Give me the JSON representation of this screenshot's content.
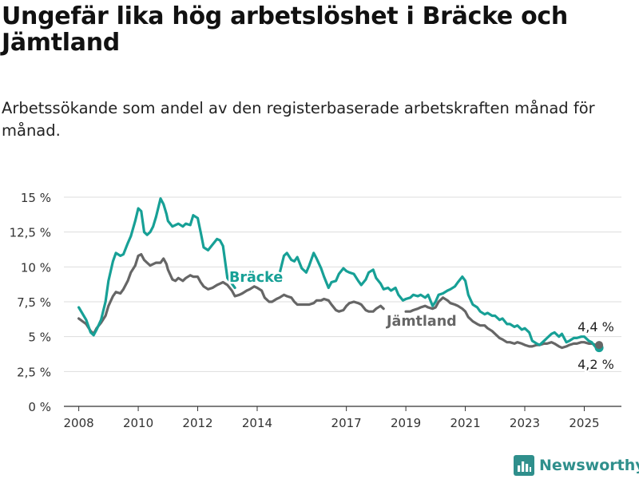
{
  "title": "Ungefär lika hög arbetslöshet i Bräcke och Jämtland",
  "subtitle": "Arbetssökande som andel av den registerbaserade arbetskraften månad för månad.",
  "brand": {
    "name": "Newsworthy",
    "icon": "bar-chart-icon",
    "color": "#2f8f8c"
  },
  "chart_data": {
    "type": "line",
    "title": "Ungefär lika hög arbetslöshet i Bräcke och Jämtland",
    "subtitle": "Arbetssökande som andel av den registerbaserade arbetskraften månad för månad.",
    "xlabel": "",
    "ylabel": "",
    "xlim": [
      2007.5,
      2026.25
    ],
    "ylim": [
      0,
      15
    ],
    "yticks": [
      0,
      2.5,
      5,
      7.5,
      10,
      12.5,
      15
    ],
    "ytick_labels": [
      "0 %",
      "2,5 %",
      "5 %",
      "7,5 %",
      "10 %",
      "12,5 %",
      "15 %"
    ],
    "xticks": [
      2008,
      2010,
      2012,
      2014,
      2017,
      2019,
      2021,
      2023,
      2025
    ],
    "xtick_labels": [
      "2008",
      "2010",
      "2012",
      "2014",
      "2017",
      "2019",
      "2021",
      "2023",
      "2025"
    ],
    "grid": "horizontal",
    "legend": "direct labels",
    "series": [
      {
        "name": "Bräcke",
        "color": "#17a096",
        "end_label": "4,2 %",
        "x": [
          2008.0,
          2008.25,
          2008.4,
          2008.5,
          2008.6,
          2008.75,
          2008.9,
          2009.0,
          2009.15,
          2009.25,
          2009.4,
          2009.5,
          2009.65,
          2009.75,
          2009.9,
          2010.0,
          2010.1,
          2010.2,
          2010.3,
          2010.4,
          2010.5,
          2010.6,
          2010.75,
          2010.85,
          2010.95,
          2011.0,
          2011.15,
          2011.25,
          2011.35,
          2011.5,
          2011.6,
          2011.75,
          2011.85,
          2012.0,
          2012.1,
          2012.2,
          2012.35,
          2012.5,
          2012.65,
          2012.75,
          2012.85,
          2013.0,
          2013.15,
          2013.25,
          2014.75,
          2014.9,
          2015.0,
          2015.15,
          2015.25,
          2015.35,
          2015.5,
          2015.65,
          2015.75,
          2015.9,
          2016.0,
          2016.15,
          2016.25,
          2016.4,
          2016.5,
          2016.65,
          2016.75,
          2016.9,
          2017.0,
          2017.1,
          2017.25,
          2017.4,
          2017.5,
          2017.65,
          2017.75,
          2017.9,
          2018.0,
          2018.15,
          2018.25,
          2018.4,
          2018.5,
          2018.65,
          2018.75,
          2018.9,
          2019.0,
          2019.15,
          2019.25,
          2019.4,
          2019.5,
          2019.65,
          2019.75,
          2019.9,
          2020.0,
          2020.1,
          2020.25,
          2020.4,
          2020.5,
          2020.65,
          2020.75,
          2020.9,
          2021.0,
          2021.1,
          2021.25,
          2021.4,
          2021.5,
          2021.65,
          2021.75,
          2021.9,
          2022.0,
          2022.15,
          2022.25,
          2022.4,
          2022.5,
          2022.65,
          2022.75,
          2022.9,
          2023.0,
          2023.15,
          2023.25,
          2023.4,
          2023.5,
          2023.65,
          2023.75,
          2023.9,
          2024.0,
          2024.15,
          2024.25,
          2024.4,
          2024.5,
          2024.65,
          2024.75,
          2024.9,
          2025.0,
          2025.15,
          2025.25,
          2025.4,
          2025.5
        ],
        "values": [
          7.1,
          6.2,
          5.3,
          5.1,
          5.5,
          6.2,
          7.5,
          9.0,
          10.4,
          11.0,
          10.8,
          10.9,
          11.7,
          12.2,
          13.3,
          14.2,
          14.0,
          12.5,
          12.3,
          12.5,
          12.9,
          13.6,
          14.9,
          14.5,
          13.8,
          13.3,
          12.9,
          13.0,
          13.1,
          12.9,
          13.1,
          13.0,
          13.7,
          13.5,
          12.5,
          11.4,
          11.2,
          11.6,
          12.0,
          11.9,
          11.5,
          9.2,
          8.8,
          8.5,
          9.5,
          10.8,
          11.0,
          10.5,
          10.4,
          10.7,
          9.9,
          9.6,
          10.1,
          11.0,
          10.6,
          9.9,
          9.3,
          8.5,
          8.9,
          9.0,
          9.5,
          9.9,
          9.7,
          9.6,
          9.5,
          9.0,
          8.7,
          9.1,
          9.6,
          9.8,
          9.2,
          8.8,
          8.4,
          8.5,
          8.3,
          8.5,
          8.0,
          7.6,
          7.7,
          7.8,
          8.0,
          7.9,
          8.0,
          7.8,
          8.0,
          7.2,
          7.5,
          8.0,
          8.1,
          8.3,
          8.4,
          8.6,
          8.9,
          9.3,
          9.0,
          8.0,
          7.3,
          7.1,
          6.8,
          6.6,
          6.7,
          6.5,
          6.5,
          6.2,
          6.3,
          5.9,
          5.9,
          5.7,
          5.8,
          5.5,
          5.6,
          5.3,
          4.7,
          4.5,
          4.4,
          4.7,
          4.9,
          5.2,
          5.3,
          5.0,
          5.2,
          4.6,
          4.7,
          4.9,
          4.9,
          5.0,
          5.0,
          4.7,
          4.6,
          4.2,
          4.2
        ]
      },
      {
        "name": "Jämtland",
        "color": "#666666",
        "end_label": "4,4 %",
        "x": [
          2008.0,
          2008.25,
          2008.4,
          2008.5,
          2008.6,
          2008.75,
          2008.9,
          2009.0,
          2009.15,
          2009.25,
          2009.4,
          2009.5,
          2009.65,
          2009.75,
          2009.9,
          2010.0,
          2010.1,
          2010.2,
          2010.3,
          2010.4,
          2010.5,
          2010.6,
          2010.75,
          2010.85,
          2010.95,
          2011.0,
          2011.15,
          2011.25,
          2011.35,
          2011.5,
          2011.6,
          2011.75,
          2011.85,
          2012.0,
          2012.1,
          2012.2,
          2012.35,
          2012.5,
          2012.65,
          2012.75,
          2012.85,
          2013.0,
          2013.15,
          2013.25,
          2013.4,
          2013.5,
          2013.65,
          2013.75,
          2013.9,
          2014.0,
          2014.15,
          2014.25,
          2014.4,
          2014.5,
          2014.65,
          2014.75,
          2014.9,
          2015.0,
          2015.15,
          2015.25,
          2015.35,
          2015.5,
          2015.65,
          2015.75,
          2015.9,
          2016.0,
          2016.15,
          2016.25,
          2016.4,
          2016.5,
          2016.65,
          2016.75,
          2016.9,
          2017.0,
          2017.1,
          2017.25,
          2017.4,
          2017.5,
          2017.65,
          2017.75,
          2017.9,
          2018.0,
          2018.15,
          2018.25,
          2019.0,
          2019.15,
          2019.25,
          2019.4,
          2019.5,
          2019.65,
          2019.75,
          2019.9,
          2020.0,
          2020.1,
          2020.25,
          2020.4,
          2020.5,
          2020.65,
          2020.75,
          2020.9,
          2021.0,
          2021.1,
          2021.25,
          2021.4,
          2021.5,
          2021.65,
          2021.75,
          2021.9,
          2022.0,
          2022.15,
          2022.25,
          2022.4,
          2022.5,
          2022.65,
          2022.75,
          2022.9,
          2023.0,
          2023.15,
          2023.25,
          2023.4,
          2023.5,
          2023.65,
          2023.75,
          2023.9,
          2024.0,
          2024.15,
          2024.25,
          2024.4,
          2024.5,
          2024.65,
          2024.75,
          2024.9,
          2025.0,
          2025.15,
          2025.25,
          2025.4,
          2025.5
        ],
        "values": [
          6.3,
          5.9,
          5.4,
          5.2,
          5.6,
          6.0,
          6.5,
          7.2,
          7.9,
          8.2,
          8.1,
          8.4,
          9.0,
          9.6,
          10.1,
          10.8,
          10.9,
          10.5,
          10.3,
          10.1,
          10.2,
          10.3,
          10.3,
          10.6,
          10.2,
          9.8,
          9.1,
          9.0,
          9.2,
          9.0,
          9.2,
          9.4,
          9.3,
          9.3,
          8.9,
          8.6,
          8.4,
          8.5,
          8.7,
          8.8,
          8.9,
          8.7,
          8.3,
          7.9,
          8.0,
          8.1,
          8.3,
          8.4,
          8.6,
          8.5,
          8.3,
          7.8,
          7.5,
          7.5,
          7.7,
          7.8,
          8.0,
          7.9,
          7.8,
          7.5,
          7.3,
          7.3,
          7.3,
          7.3,
          7.4,
          7.6,
          7.6,
          7.7,
          7.6,
          7.3,
          6.9,
          6.8,
          6.9,
          7.2,
          7.4,
          7.5,
          7.4,
          7.3,
          6.9,
          6.8,
          6.8,
          7.0,
          7.2,
          7.0,
          6.8,
          6.8,
          6.9,
          7.0,
          7.1,
          7.2,
          7.1,
          7.0,
          7.1,
          7.5,
          7.8,
          7.6,
          7.4,
          7.3,
          7.2,
          7.0,
          6.8,
          6.4,
          6.1,
          5.9,
          5.8,
          5.8,
          5.6,
          5.4,
          5.2,
          4.9,
          4.8,
          4.6,
          4.6,
          4.5,
          4.6,
          4.5,
          4.4,
          4.3,
          4.3,
          4.4,
          4.4,
          4.5,
          4.5,
          4.6,
          4.5,
          4.3,
          4.2,
          4.3,
          4.4,
          4.5,
          4.5,
          4.6,
          4.6,
          4.5,
          4.5,
          4.4,
          4.4
        ]
      }
    ]
  }
}
